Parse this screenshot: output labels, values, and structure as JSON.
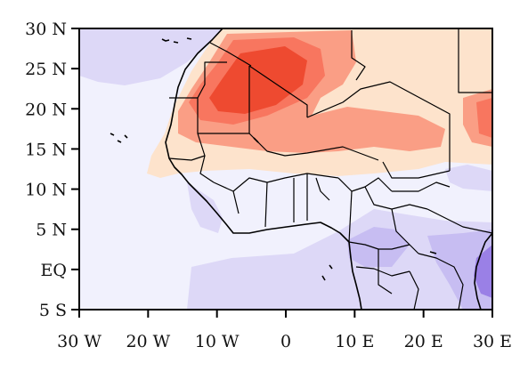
{
  "map": {
    "lat_labels": [
      "30 N",
      "25 N",
      "20 N",
      "15 N",
      "10 N",
      "5 N",
      "EQ",
      "5 S"
    ],
    "lon_labels": [
      "30 W",
      "20 W",
      "10 W",
      "0",
      "10 E",
      "20 E",
      "30 E"
    ],
    "extent": {
      "lon_min": -30,
      "lon_max": 30,
      "lat_min": -5,
      "lat_max": 30
    },
    "colors": {
      "background": "#f1f1fd",
      "light_purple": "#ddd8f7",
      "mid_purple": "#c7bdf2",
      "deep_purple": "#9a80e6",
      "pale_orange": "#fde3cc",
      "salmon": "#fa9e85",
      "light_red": "#f8765f",
      "red": "#ee4a30"
    },
    "frame_color": "#000000"
  }
}
